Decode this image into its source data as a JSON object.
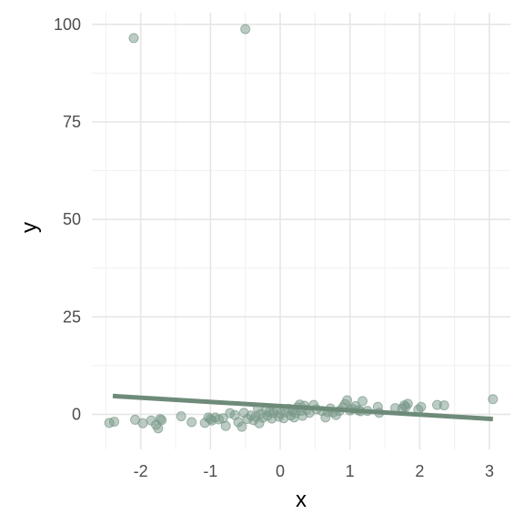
{
  "chart_data": {
    "type": "scatter",
    "xlabel": "x",
    "ylabel": "y",
    "xlim": [
      -2.7,
      3.3
    ],
    "ylim": [
      -9,
      103
    ],
    "x_ticks": [
      -2,
      -1,
      0,
      1,
      2,
      3
    ],
    "x_tick_labels": [
      "-2",
      "-1",
      "0",
      "1",
      "2",
      "3"
    ],
    "y_ticks": [
      0,
      25,
      50,
      75,
      100
    ],
    "y_tick_labels": [
      "0",
      "25",
      "50",
      "75",
      "100"
    ],
    "grid": true,
    "point_color": "#7a9a8a",
    "line_color": "#6e8b7a",
    "points": [
      {
        "x": -2.45,
        "y": -2.2
      },
      {
        "x": -2.38,
        "y": -1.9
      },
      {
        "x": -2.1,
        "y": 96.5
      },
      {
        "x": -2.08,
        "y": -1.4
      },
      {
        "x": -1.97,
        "y": -2.3
      },
      {
        "x": -1.85,
        "y": -1.6
      },
      {
        "x": -1.78,
        "y": -2.7
      },
      {
        "x": -1.75,
        "y": -3.6
      },
      {
        "x": -1.72,
        "y": -1.2
      },
      {
        "x": -1.7,
        "y": -1.5
      },
      {
        "x": -1.42,
        "y": -0.5
      },
      {
        "x": -1.27,
        "y": -2.0
      },
      {
        "x": -1.08,
        "y": -2.2
      },
      {
        "x": -1.03,
        "y": -0.8
      },
      {
        "x": -1.0,
        "y": -1.2
      },
      {
        "x": -0.98,
        "y": -1.6
      },
      {
        "x": -0.93,
        "y": -0.8
      },
      {
        "x": -0.88,
        "y": -1.3
      },
      {
        "x": -0.82,
        "y": -1.0
      },
      {
        "x": -0.78,
        "y": -3.0
      },
      {
        "x": -0.72,
        "y": 0.3
      },
      {
        "x": -0.65,
        "y": -0.2
      },
      {
        "x": -0.6,
        "y": -2.0
      },
      {
        "x": -0.55,
        "y": -3.2
      },
      {
        "x": -0.52,
        "y": 0.4
      },
      {
        "x": -0.5,
        "y": 98.8
      },
      {
        "x": -0.47,
        "y": -1.2
      },
      {
        "x": -0.42,
        "y": -0.3
      },
      {
        "x": -0.38,
        "y": -1.5
      },
      {
        "x": -0.35,
        "y": -0.6
      },
      {
        "x": -0.32,
        "y": 1.6
      },
      {
        "x": -0.3,
        "y": -2.3
      },
      {
        "x": -0.28,
        "y": 0.1
      },
      {
        "x": -0.25,
        "y": -0.9
      },
      {
        "x": -0.2,
        "y": 1.0
      },
      {
        "x": -0.18,
        "y": -0.4
      },
      {
        "x": -0.15,
        "y": 0.6
      },
      {
        "x": -0.12,
        "y": -1.1
      },
      {
        "x": -0.1,
        "y": 0.4
      },
      {
        "x": -0.05,
        "y": 1.1
      },
      {
        "x": -0.02,
        "y": -0.6
      },
      {
        "x": 0.0,
        "y": 0.2
      },
      {
        "x": 0.05,
        "y": -1.0
      },
      {
        "x": 0.08,
        "y": 0.5
      },
      {
        "x": 0.12,
        "y": 1.4
      },
      {
        "x": 0.15,
        "y": -0.3
      },
      {
        "x": 0.18,
        "y": 0.8
      },
      {
        "x": 0.2,
        "y": -0.8
      },
      {
        "x": 0.22,
        "y": 0.3
      },
      {
        "x": 0.25,
        "y": 1.8
      },
      {
        "x": 0.28,
        "y": 2.5
      },
      {
        "x": 0.3,
        "y": 0.9
      },
      {
        "x": 0.32,
        "y": -0.4
      },
      {
        "x": 0.35,
        "y": 2.2
      },
      {
        "x": 0.38,
        "y": 1.2
      },
      {
        "x": 0.42,
        "y": 0.4
      },
      {
        "x": 0.48,
        "y": 2.4
      },
      {
        "x": 0.52,
        "y": 1.3
      },
      {
        "x": 0.6,
        "y": 0.9
      },
      {
        "x": 0.65,
        "y": -0.8
      },
      {
        "x": 0.68,
        "y": 0.6
      },
      {
        "x": 0.72,
        "y": 1.5
      },
      {
        "x": 0.76,
        "y": 0.5
      },
      {
        "x": 0.8,
        "y": -0.2
      },
      {
        "x": 0.85,
        "y": 0.9
      },
      {
        "x": 0.9,
        "y": 1.8
      },
      {
        "x": 0.93,
        "y": 2.6
      },
      {
        "x": 0.96,
        "y": 3.6
      },
      {
        "x": 1.0,
        "y": 1.0
      },
      {
        "x": 1.03,
        "y": 1.4
      },
      {
        "x": 1.08,
        "y": 2.1
      },
      {
        "x": 1.12,
        "y": 1.1
      },
      {
        "x": 1.15,
        "y": 0.8
      },
      {
        "x": 1.18,
        "y": 3.4
      },
      {
        "x": 1.25,
        "y": 0.9
      },
      {
        "x": 1.4,
        "y": 1.9
      },
      {
        "x": 1.42,
        "y": 0.4
      },
      {
        "x": 1.65,
        "y": 1.6
      },
      {
        "x": 1.75,
        "y": 1.5
      },
      {
        "x": 1.78,
        "y": 2.3
      },
      {
        "x": 1.8,
        "y": 1.9
      },
      {
        "x": 1.83,
        "y": 2.7
      },
      {
        "x": 1.98,
        "y": 1.2
      },
      {
        "x": 2.02,
        "y": 1.9
      },
      {
        "x": 2.25,
        "y": 2.4
      },
      {
        "x": 2.35,
        "y": 2.3
      },
      {
        "x": 3.05,
        "y": 3.9
      }
    ],
    "regression_line": {
      "x": [
        -2.4,
        3.05
      ],
      "y": [
        4.7,
        -1.2
      ]
    }
  }
}
